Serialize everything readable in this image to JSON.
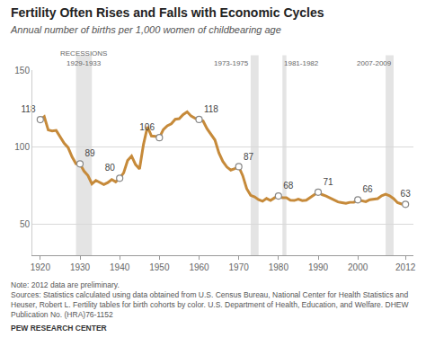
{
  "chart_data": {
    "type": "line",
    "title": "Fertility Often Rises and Falls with Economic Cycles",
    "subtitle": "Annual number of births per 1,000 women of childbearing age",
    "x": [
      1920,
      1921,
      1922,
      1923,
      1924,
      1925,
      1926,
      1927,
      1928,
      1929,
      1930,
      1931,
      1932,
      1933,
      1934,
      1935,
      1936,
      1937,
      1938,
      1939,
      1940,
      1941,
      1942,
      1943,
      1944,
      1945,
      1946,
      1947,
      1948,
      1949,
      1950,
      1951,
      1952,
      1953,
      1954,
      1955,
      1956,
      1957,
      1958,
      1959,
      1960,
      1961,
      1962,
      1963,
      1964,
      1965,
      1966,
      1967,
      1968,
      1969,
      1970,
      1971,
      1972,
      1973,
      1974,
      1975,
      1976,
      1977,
      1978,
      1979,
      1980,
      1981,
      1982,
      1983,
      1984,
      1985,
      1986,
      1987,
      1988,
      1989,
      1990,
      1991,
      1992,
      1993,
      1994,
      1995,
      1996,
      1997,
      1998,
      1999,
      2000,
      2001,
      2002,
      2003,
      2004,
      2005,
      2006,
      2007,
      2008,
      2009,
      2010,
      2011,
      2012
    ],
    "values": [
      117.9,
      119.8,
      111.2,
      110.5,
      110.9,
      106.6,
      102.6,
      99.8,
      93.8,
      89.3,
      89.2,
      84.6,
      81.7,
      76.3,
      78.5,
      77.2,
      75.8,
      77.1,
      79.1,
      77.6,
      79.9,
      83.4,
      91.5,
      94.3,
      88.8,
      85.9,
      101.9,
      113.3,
      107.3,
      107.1,
      106.2,
      111.5,
      113.9,
      115.2,
      118.1,
      118.5,
      121.2,
      122.9,
      120.2,
      118.8,
      118.0,
      117.1,
      112.0,
      108.3,
      104.7,
      96.3,
      90.8,
      87.2,
      85.2,
      86.1,
      87.4,
      81.6,
      73.1,
      68.8,
      67.8,
      66.0,
      65.0,
      66.8,
      65.5,
      67.2,
      68.4,
      67.3,
      67.3,
      65.7,
      65.5,
      66.3,
      65.4,
      65.7,
      67.2,
      69.2,
      70.9,
      69.3,
      68.4,
      67.0,
      65.9,
      64.6,
      64.1,
      63.6,
      64.3,
      64.4,
      65.9,
      65.1,
      64.7,
      66.0,
      66.4,
      66.7,
      68.6,
      69.5,
      68.6,
      66.7,
      64.1,
      63.2,
      63.0
    ],
    "value_labels": [
      "118",
      null,
      null,
      null,
      null,
      null,
      null,
      null,
      null,
      null,
      "89",
      null,
      null,
      null,
      null,
      null,
      null,
      null,
      null,
      null,
      "80",
      null,
      null,
      null,
      null,
      null,
      null,
      null,
      null,
      null,
      "106",
      null,
      null,
      null,
      null,
      null,
      null,
      null,
      null,
      null,
      "118",
      null,
      null,
      null,
      null,
      null,
      null,
      null,
      null,
      null,
      "87",
      null,
      null,
      null,
      null,
      null,
      null,
      null,
      null,
      null,
      "68",
      null,
      null,
      null,
      null,
      null,
      null,
      null,
      null,
      null,
      "71",
      null,
      null,
      null,
      null,
      null,
      null,
      null,
      null,
      null,
      "66",
      null,
      null,
      null,
      null,
      null,
      null,
      null,
      null,
      null,
      null,
      null,
      "63"
    ],
    "color": "#c68a3a",
    "marker": "circle",
    "xlim": [
      1918,
      2014
    ],
    "xticks": [
      1920,
      1930,
      1940,
      1950,
      1960,
      1970,
      1980,
      1990,
      2000,
      2012
    ],
    "ylim": [
      30,
      150
    ],
    "yticks": [
      50,
      100,
      150
    ],
    "grid": true,
    "recessions_label": "RECESSIONS",
    "recessions": [
      {
        "start": 1929,
        "end": 1933,
        "label": "1929-1933"
      },
      {
        "start": 1973,
        "end": 1975,
        "label": "1973-1975"
      },
      {
        "start": 1981,
        "end": 1982,
        "label": "1981-1982"
      },
      {
        "start": 2007,
        "end": 2009,
        "label": "2007-2009"
      }
    ],
    "note": "Note: 2012 data are preliminary.",
    "source": "Sources: Statistics calculated using data obtained from U.S. Census Bureau, National Center for Health Statistics and Heuser, Robert L. Fertility tables for birth cohorts by color. U.S. Department of Health, Education, and Welfare. DHEW Publication No. (HRA)76-1152",
    "credit": "PEW RESEARCH CENTER"
  }
}
